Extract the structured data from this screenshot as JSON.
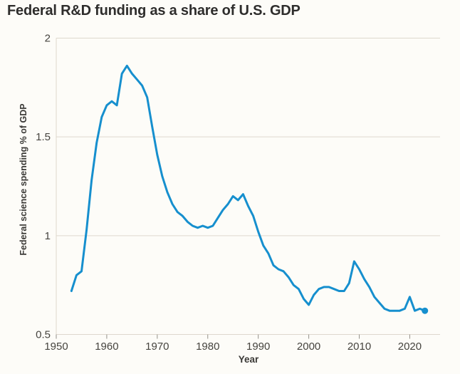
{
  "chart": {
    "title": "Federal R&D funding as a share of U.S. GDP",
    "x_axis_title": "Year",
    "y_axis_title": "Federal science spending % of GDP"
  },
  "colors": {
    "accent_blue": "#168fce",
    "grid": "#ded8cd",
    "tick": "#94918a",
    "title_text": "#2e2d2c",
    "axis_text": "#46443f"
  },
  "chart_data": {
    "type": "line",
    "title": "Federal R&D funding as a share of U.S. GDP",
    "xlabel": "Year",
    "ylabel": "Federal science spending % of GDP",
    "xlim": [
      1950,
      2026
    ],
    "ylim": [
      0.5,
      2
    ],
    "x_ticks": [
      1950,
      1960,
      1970,
      1980,
      1990,
      2000,
      2010,
      2020
    ],
    "y_ticks": [
      0.5,
      1,
      1.5,
      2
    ],
    "grid": "horizontal-only",
    "legend": "none",
    "line_color": "#168fce",
    "end_point_marker": {
      "year": 2023,
      "value": 0.62
    },
    "series": [
      {
        "name": "Federal R&D funding as a share of U.S. GDP",
        "x": [
          1953,
          1954,
          1955,
          1956,
          1957,
          1958,
          1959,
          1960,
          1961,
          1962,
          1963,
          1964,
          1965,
          1966,
          1967,
          1968,
          1969,
          1970,
          1971,
          1972,
          1973,
          1974,
          1975,
          1976,
          1977,
          1978,
          1979,
          1980,
          1981,
          1982,
          1983,
          1984,
          1985,
          1986,
          1987,
          1988,
          1989,
          1990,
          1991,
          1992,
          1993,
          1994,
          1995,
          1996,
          1997,
          1998,
          1999,
          2000,
          2001,
          2002,
          2003,
          2004,
          2005,
          2006,
          2007,
          2008,
          2009,
          2010,
          2011,
          2012,
          2013,
          2014,
          2015,
          2016,
          2017,
          2018,
          2019,
          2020,
          2021,
          2022,
          2023
        ],
        "y": [
          0.72,
          0.8,
          0.82,
          1.03,
          1.28,
          1.47,
          1.6,
          1.66,
          1.68,
          1.66,
          1.82,
          1.86,
          1.82,
          1.79,
          1.76,
          1.7,
          1.55,
          1.41,
          1.3,
          1.22,
          1.16,
          1.12,
          1.1,
          1.07,
          1.05,
          1.04,
          1.05,
          1.04,
          1.05,
          1.09,
          1.13,
          1.16,
          1.2,
          1.18,
          1.21,
          1.15,
          1.1,
          1.02,
          0.95,
          0.91,
          0.85,
          0.83,
          0.82,
          0.79,
          0.75,
          0.73,
          0.68,
          0.65,
          0.7,
          0.73,
          0.74,
          0.74,
          0.73,
          0.72,
          0.72,
          0.76,
          0.87,
          0.83,
          0.78,
          0.74,
          0.69,
          0.66,
          0.63,
          0.62,
          0.62,
          0.62,
          0.63,
          0.69,
          0.62,
          0.63,
          0.62
        ]
      }
    ]
  }
}
